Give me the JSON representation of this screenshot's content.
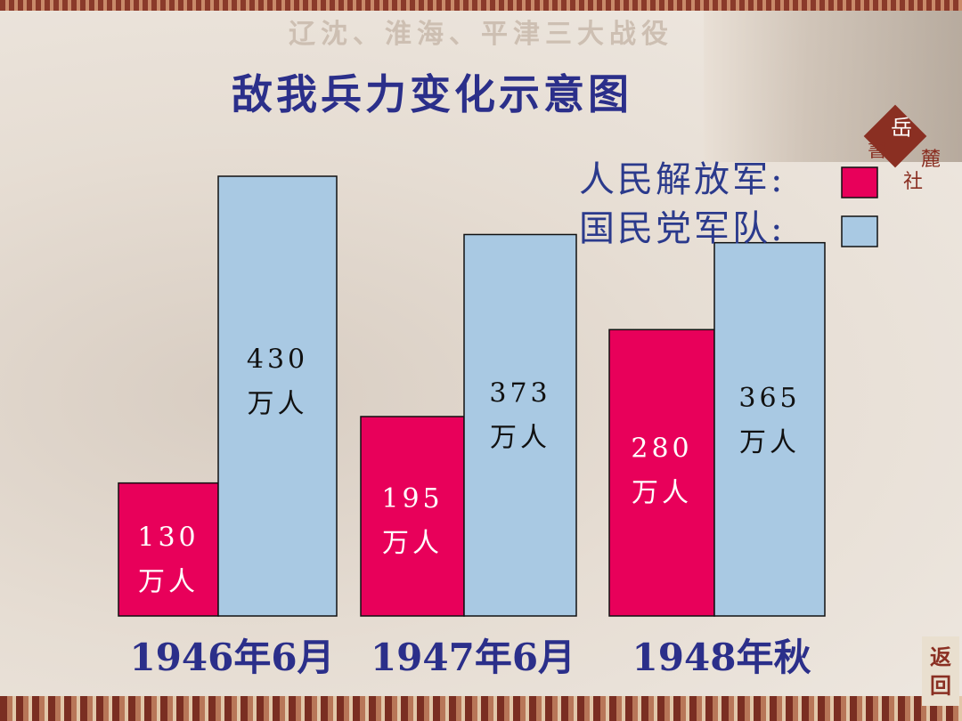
{
  "chart_data": {
    "type": "bar",
    "subtitle": "辽沈、淮海、平津三大战役",
    "title": "敌我兵力变化示意图",
    "categories": [
      "1946年6月",
      "1947年6月",
      "1948年秋"
    ],
    "series": [
      {
        "name": "人民解放军:",
        "color": "#e8005a",
        "values": [
          130,
          195,
          280
        ],
        "value_labels": [
          "130万人",
          "195万人",
          "280万人"
        ]
      },
      {
        "name": "国民党军队:",
        "color": "#a9c9e3",
        "values": [
          430,
          373,
          365
        ],
        "value_labels": [
          "430万人",
          "373万人",
          "365万人"
        ]
      }
    ],
    "annotations": [
      "岳",
      "書",
      "麓",
      "社",
      "返",
      "回"
    ]
  }
}
